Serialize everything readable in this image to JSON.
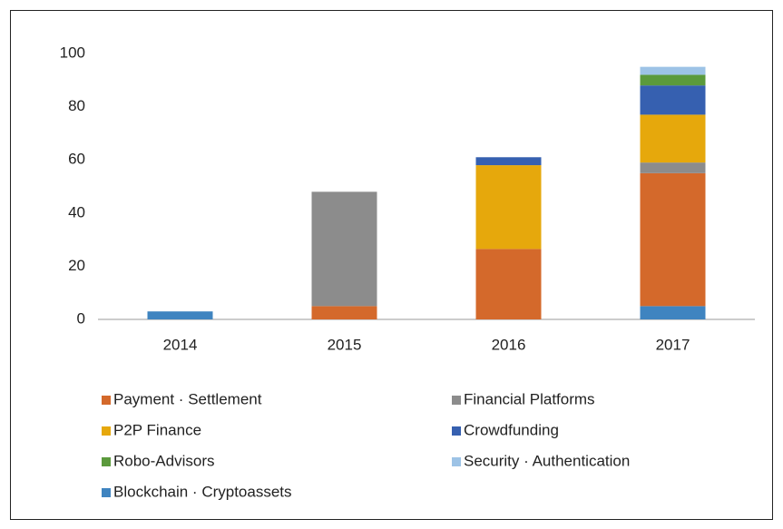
{
  "chart_data": {
    "type": "stacked_bar",
    "categories": [
      "2014",
      "2015",
      "2016",
      "2017"
    ],
    "series": [
      {
        "name": "Blockchain · Cryptoassets",
        "color": "#3f84c0",
        "values": [
          3,
          null,
          null,
          5
        ]
      },
      {
        "name": "Payment · Settlement",
        "color": "#d4692b",
        "values": [
          null,
          5,
          26.5,
          50
        ]
      },
      {
        "name": "Financial Platforms",
        "color": "#8c8c8c",
        "values": [
          null,
          43,
          null,
          4
        ]
      },
      {
        "name": "P2P Finance",
        "color": "#e6a80c",
        "values": [
          null,
          null,
          31.5,
          18
        ]
      },
      {
        "name": "Crowdfunding",
        "color": "#3660b0",
        "values": [
          null,
          null,
          3,
          11
        ]
      },
      {
        "name": "Robo-Advisors",
        "color": "#5b9a3c",
        "values": [
          null,
          null,
          null,
          4
        ]
      },
      {
        "name": "Security · Authentication",
        "color": "#9dc3e6",
        "values": [
          null,
          null,
          null,
          3
        ]
      }
    ],
    "ylim": [
      0,
      100
    ],
    "yticks": [
      0,
      20,
      40,
      60,
      80,
      100
    ],
    "grid": false
  }
}
